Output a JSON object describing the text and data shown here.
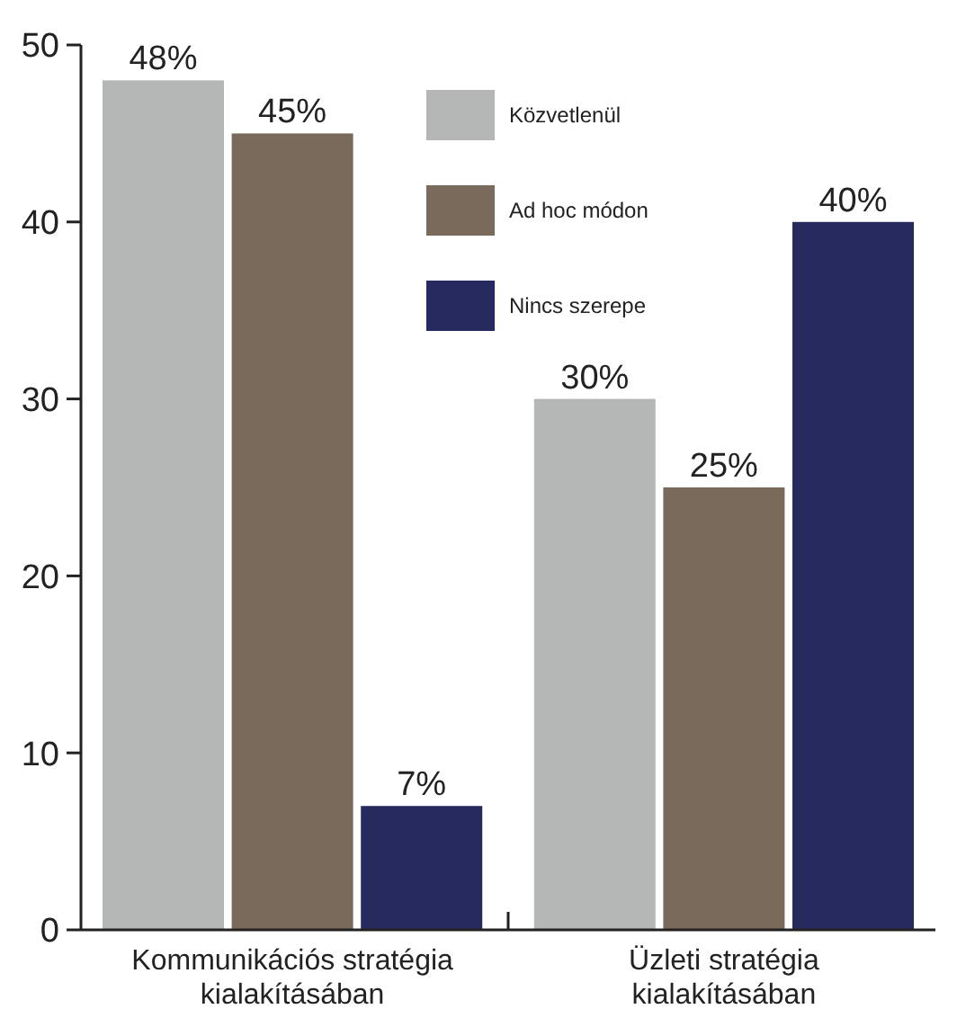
{
  "chart_data": {
    "type": "bar",
    "categories": [
      "Kommunikációs stratégia kialakításában",
      "Üzleti stratégia kialakításában"
    ],
    "series": [
      {
        "name": "Közvetlenül",
        "color": "#b5b6b6",
        "values": [
          48,
          30
        ],
        "value_labels": [
          "48%",
          "30%"
        ]
      },
      {
        "name": "Ad hoc módon",
        "color": "#7a6a5c",
        "values": [
          45,
          25
        ],
        "value_labels": [
          "45%",
          "25%"
        ]
      },
      {
        "name": "Nincs szerepe",
        "color": "#272a5e",
        "values": [
          7,
          40
        ],
        "value_labels": [
          "7%",
          "40%"
        ]
      }
    ],
    "ylim": [
      0,
      50
    ],
    "yticks": [
      0,
      10,
      20,
      30,
      40,
      50
    ],
    "grid": false,
    "legend": "top"
  }
}
